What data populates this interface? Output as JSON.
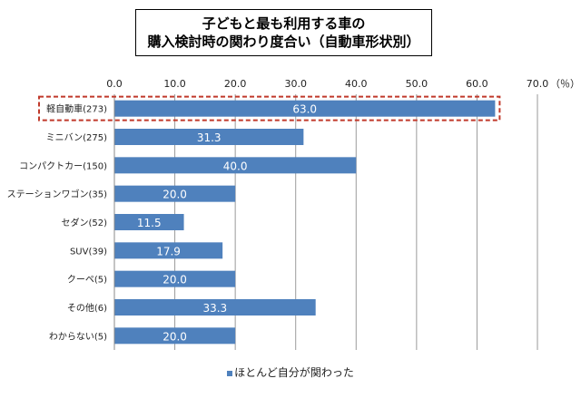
{
  "chart_data": {
    "type": "bar",
    "orientation": "horizontal",
    "title": [
      "子どもと最も利用する車の",
      "購入検討時の関わり度合い（自動車形状別）"
    ],
    "categories": [
      "軽自動車(273)",
      "ミニバン(275)",
      "コンパクトカー(150)",
      "ステーションワゴン(35)",
      "セダン(52)",
      "SUV(39)",
      "クーペ(5)",
      "その他(6)",
      "わからない(5)"
    ],
    "series": [
      {
        "name": "ほとんど自分が関わった",
        "values": [
          63.0,
          31.3,
          40.0,
          20.0,
          11.5,
          17.9,
          20.0,
          33.3,
          20.0
        ],
        "value_labels": [
          "63.0",
          "31.3",
          "40.0",
          "20.0",
          "11.5",
          "17.9",
          "20.0",
          "33.3",
          "20.0"
        ]
      }
    ],
    "xlim": [
      0,
      70
    ],
    "ticks": [
      "0.0",
      "10.0",
      "20.0",
      "30.0",
      "40.0",
      "50.0",
      "60.0",
      "70.0"
    ],
    "unit_label": "（％）",
    "grid": true,
    "legend_position": "bottom",
    "highlighted_category_index": 0,
    "colors": {
      "bar": "#4f81bd",
      "grid": "#9a9a9a",
      "highlight": "#c0392b",
      "value_label": "#ffffff"
    }
  }
}
